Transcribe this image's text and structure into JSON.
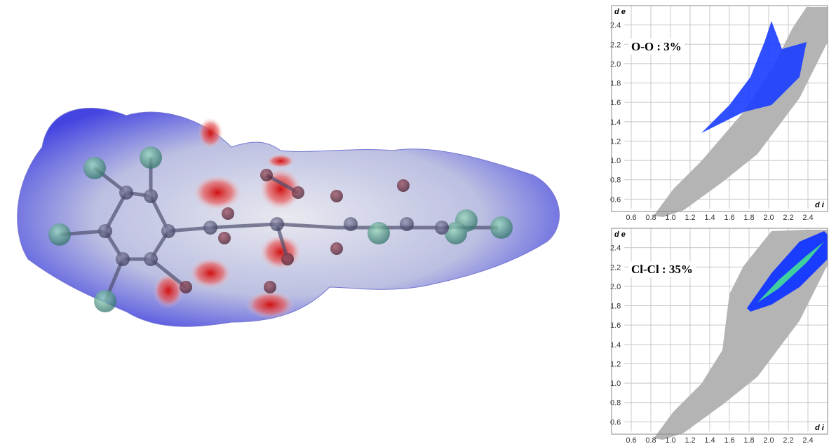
{
  "chart_data": [
    {
      "type": "fingerprint",
      "title": "O-O : 3%",
      "ylabel": "d e",
      "xlabel": "d i",
      "xlim": [
        0.4,
        2.6
      ],
      "ylim": [
        0.4,
        2.6
      ],
      "xticks": [
        0.6,
        0.8,
        {
          "value": 1,
          "label": "1.0"
        },
        1.2,
        1.4,
        1.6,
        1.8,
        {
          "value": 2,
          "label": "2.0"
        },
        2.2,
        2.4
      ],
      "yticks": [
        0.6,
        0.8,
        {
          "value": 1,
          "label": "1.0"
        },
        1.2,
        1.4,
        1.6,
        1.8,
        {
          "value": 2,
          "label": "2.0"
        },
        2.2,
        2.4
      ],
      "grid": true,
      "color": "#1a3cff"
    },
    {
      "type": "fingerprint",
      "title": "Cl-Cl : 35%",
      "ylabel": "d e",
      "xlabel": "d i",
      "xlim": [
        0.4,
        2.6
      ],
      "ylim": [
        0.4,
        2.6
      ],
      "xticks": [
        0.6,
        0.8,
        {
          "value": 1,
          "label": "1.0"
        },
        1.2,
        1.4,
        1.6,
        1.8,
        {
          "value": 2,
          "label": "2.0"
        },
        2.2,
        2.4
      ],
      "yticks": [
        0.6,
        0.8,
        {
          "value": 1,
          "label": "1.0"
        },
        1.2,
        1.4,
        1.6,
        1.8,
        {
          "value": 2,
          "label": "2.0"
        },
        2.2,
        2.4
      ],
      "grid": true,
      "color": "#1a3cff"
    }
  ]
}
